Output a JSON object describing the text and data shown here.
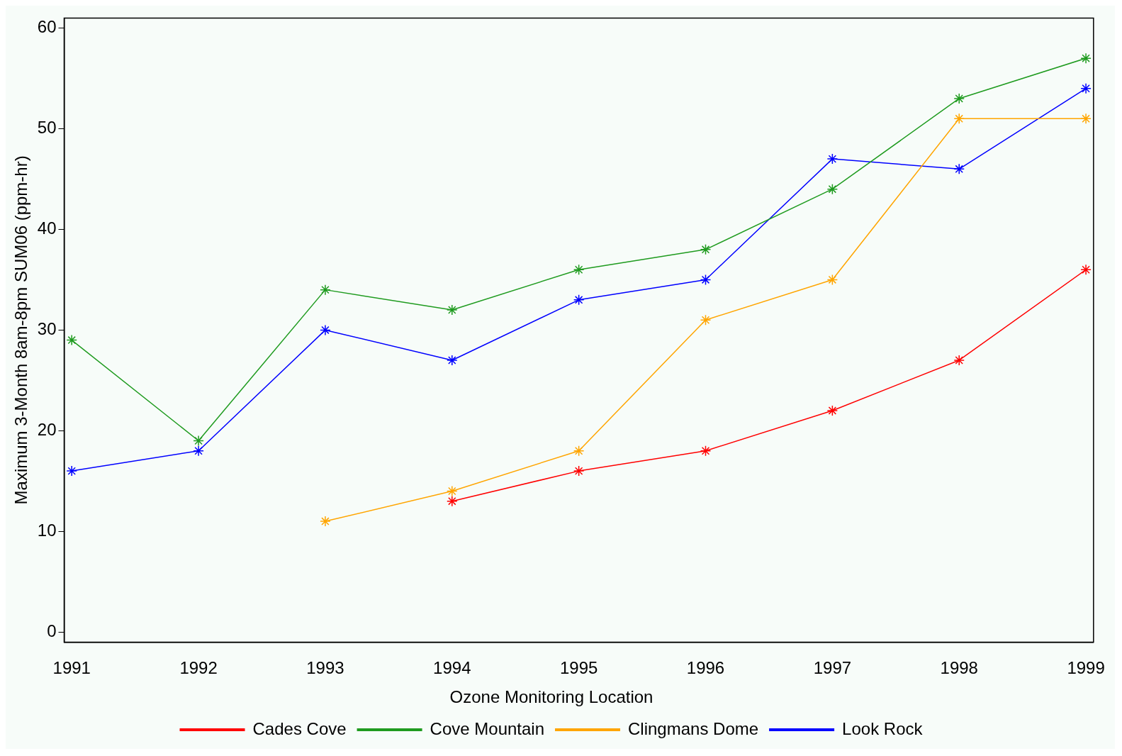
{
  "chart_data": {
    "type": "line",
    "ylabel": "Maximum 3-Month 8am-8pm SUM06 (ppm-hr)",
    "legend_title": "Ozone Monitoring Location",
    "x": [
      1991,
      1992,
      1993,
      1994,
      1995,
      1996,
      1997,
      1998,
      1999
    ],
    "series": [
      {
        "name": "Cades Cove",
        "color": "#ff0000",
        "values": [
          null,
          null,
          null,
          13,
          16,
          18,
          22,
          27,
          36
        ]
      },
      {
        "name": "Cove Mountain",
        "color": "#1f9b1f",
        "values": [
          29,
          19,
          34,
          32,
          36,
          38,
          44,
          53,
          57
        ]
      },
      {
        "name": "Clingmans Dome",
        "color": "#ffa500",
        "values": [
          null,
          null,
          11,
          14,
          18,
          31,
          35,
          51,
          51
        ]
      },
      {
        "name": "Look Rock",
        "color": "#0000ff",
        "values": [
          16,
          18,
          30,
          27,
          33,
          35,
          47,
          46,
          54
        ]
      }
    ],
    "xlim": [
      1990.94,
      1999.06
    ],
    "xticks": [
      1991,
      1992,
      1993,
      1994,
      1995,
      1996,
      1997,
      1998,
      1999
    ],
    "ylim": [
      -1,
      61
    ],
    "yticks": [
      0,
      10,
      20,
      30,
      40,
      50,
      60
    ],
    "grid": false,
    "legend": "bottom",
    "marker": "cross",
    "line_style": "solid"
  }
}
